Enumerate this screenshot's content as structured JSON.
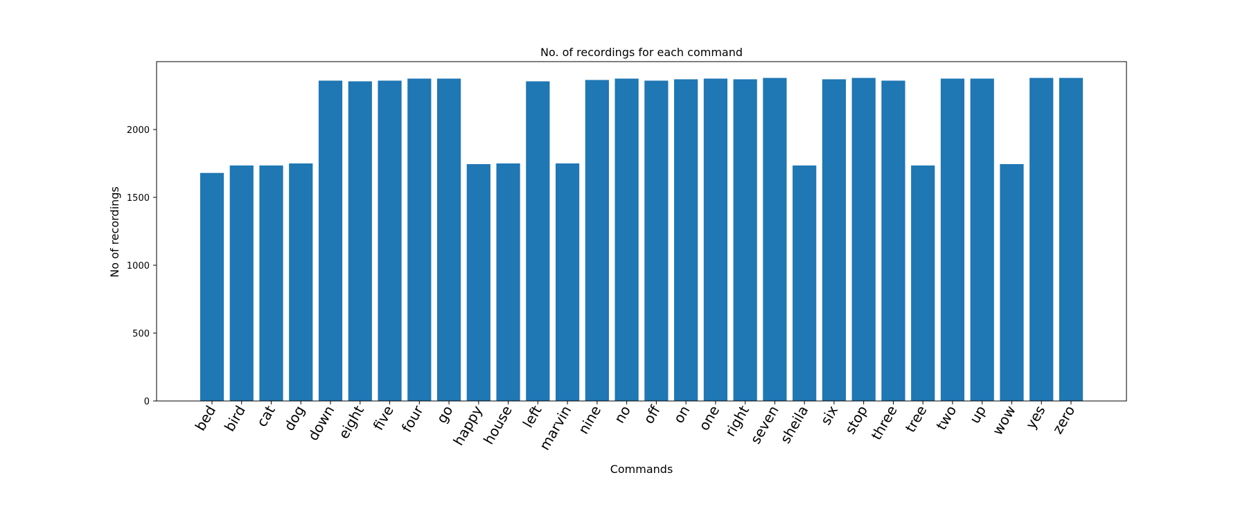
{
  "chart_data": {
    "type": "bar",
    "title": "No. of recordings for each command",
    "xlabel": "Commands",
    "ylabel": "No of recordings",
    "ylim": [
      0,
      2500
    ],
    "yticks": [
      0,
      500,
      1000,
      1500,
      2000
    ],
    "categories": [
      "bed",
      "bird",
      "cat",
      "dog",
      "down",
      "eight",
      "five",
      "four",
      "go",
      "happy",
      "house",
      "left",
      "marvin",
      "nine",
      "no",
      "off",
      "on",
      "one",
      "right",
      "seven",
      "sheila",
      "six",
      "stop",
      "three",
      "tree",
      "two",
      "up",
      "wow",
      "yes",
      "zero"
    ],
    "values": [
      1680,
      1735,
      1735,
      1750,
      2360,
      2355,
      2360,
      2375,
      2375,
      1745,
      1750,
      2355,
      1750,
      2365,
      2375,
      2360,
      2370,
      2375,
      2370,
      2380,
      1735,
      2370,
      2380,
      2360,
      1735,
      2375,
      2375,
      1745,
      2380,
      2380
    ],
    "bar_color": "#1f77b4",
    "grid": false
  }
}
